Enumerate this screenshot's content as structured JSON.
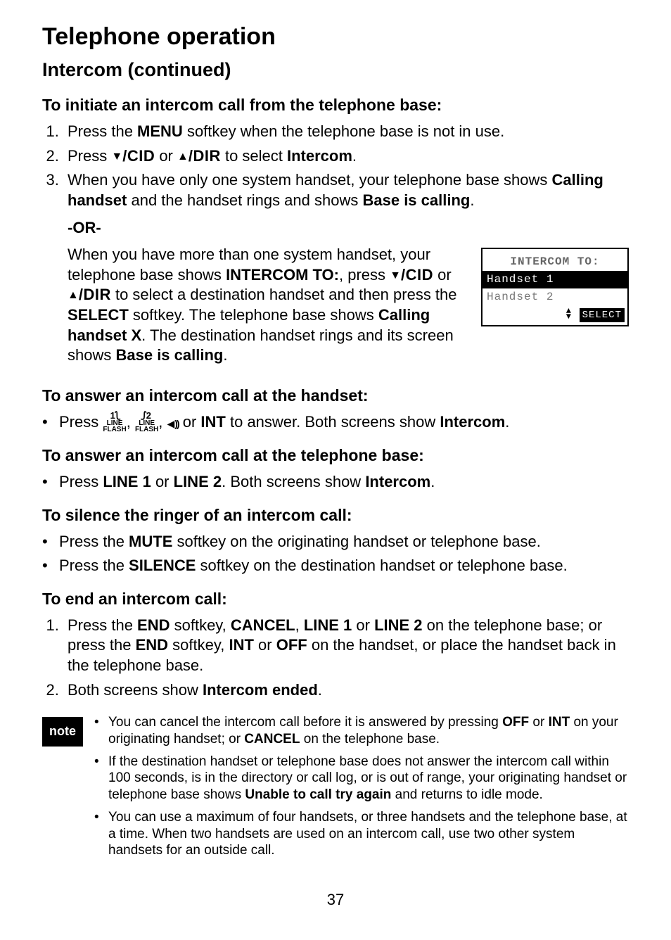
{
  "headings": {
    "h1": "Telephone operation",
    "h2": "Intercom (continued)",
    "h3_initiate": "To initiate an intercom call from the telephone base:",
    "h3_ans_handset": "To answer an intercom call at the handset:",
    "h3_ans_base": "To answer an intercom call at the telephone base:",
    "h3_silence": "To silence the ringer of an intercom call:",
    "h3_end": "To end an intercom call:"
  },
  "initiate": {
    "step1_a": "Press the ",
    "step1_menu": "MENU",
    "step1_b": " softkey when the telephone base is not in use.",
    "step2_a": "Press ",
    "step2_cid": "/CID",
    "step2_or": " or ",
    "step2_dir": "/DIR",
    "step2_b": " to select ",
    "step2_intercom": "Intercom",
    "step2_c": ".",
    "step3_a": "When you have only one system handset, your telephone base shows ",
    "step3_calling": "Calling handset",
    "step3_b": " and the handset rings and shows ",
    "step3_baseis": "Base is calling",
    "step3_c": ".",
    "or": "-OR-",
    "alt_a": "When you have more than one system handset, your telephone base shows ",
    "alt_intercomto": "INTERCOM TO:",
    "alt_b": ", press ",
    "alt_cid": "/CID",
    "alt_or": " or ",
    "alt_dir": "/DIR",
    "alt_c": " to select a destination handset and then press the ",
    "alt_select": "SELECT",
    "alt_d": " softkey. The telephone base shows ",
    "alt_callingx": "Calling handset X",
    "alt_e": ". The destination handset rings and its screen shows ",
    "alt_baseis": "Base is calling",
    "alt_f": "."
  },
  "lcd": {
    "title": "INTERCOM TO:",
    "row1": "Handset 1",
    "row2": "Handset 2",
    "select": "SELECT"
  },
  "ans_handset": {
    "a": "Press ",
    "b": " or ",
    "int": "INT",
    "c": " to answer. Both screens show ",
    "intercom": "Intercom",
    "d": "."
  },
  "ans_base": {
    "a": "Press ",
    "l1": "LINE 1",
    "or": " or ",
    "l2": "LINE 2",
    "b": ". Both screens show ",
    "intercom": "Intercom",
    "c": "."
  },
  "silence": {
    "li1_a": "Press the ",
    "li1_mute": "MUTE",
    "li1_b": " softkey on the originating handset or telephone base.",
    "li2_a": "Press the ",
    "li2_sil": "SILENCE",
    "li2_b": " softkey on the destination handset or telephone base."
  },
  "end": {
    "s1_a": "Press the ",
    "s1_end": "END",
    "s1_b": " softkey, ",
    "s1_cancel": "CANCEL",
    "s1_c": ", ",
    "s1_l1": "LINE 1",
    "s1_or": " or ",
    "s1_l2": "LINE 2",
    "s1_d": " on the telephone base; or press the ",
    "s1_end2": "END",
    "s1_e": " softkey, ",
    "s1_int": "INT",
    "s1_or2": " or ",
    "s1_off": "OFF",
    "s1_f": " on the handset, or place the handset back in the telephone base.",
    "s2_a": "Both screens show ",
    "s2_ended": "Intercom ended",
    "s2_b": "."
  },
  "note": {
    "badge": "note",
    "n1_a": "You can cancel the intercom call before it is answered by pressing ",
    "n1_off": "OFF",
    "n1_b": " or ",
    "n1_int": "INT",
    "n1_c": " on your originating handset; or ",
    "n1_cancel": "CANCEL",
    "n1_d": " on the telephone base.",
    "n2_a": "If the destination handset or telephone base does not answer the intercom call within 100 seconds, is in the directory or call log, or is out of range, your originating handset or telephone base shows ",
    "n2_unable": "Unable to call try again",
    "n2_b": " and returns to idle mode.",
    "n3": "You can use a maximum of four handsets, or three handsets and the telephone base, at a time. When two handsets are used on an intercom call, use two other system handsets for an outside call."
  },
  "page": "37",
  "glyphs": {
    "line1_num": "1",
    "line2_num": "2",
    "line_txt": "LINE",
    "flash_txt": "FLASH"
  }
}
